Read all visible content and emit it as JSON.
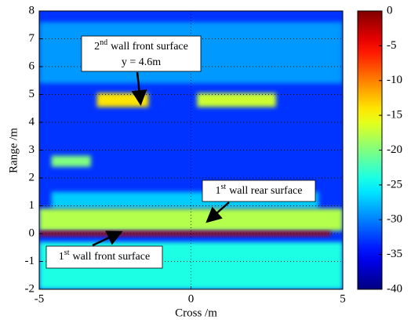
{
  "chart_data": {
    "type": "heatmap",
    "xlabel": "Cross /m",
    "ylabel": "Range /m",
    "xlim": [
      -5,
      5
    ],
    "xticks": [
      -5,
      0,
      5
    ],
    "ylim": [
      -2,
      8
    ],
    "yticks": [
      -2,
      -1,
      0,
      1,
      2,
      3,
      4,
      5,
      6,
      7,
      8
    ],
    "grid": true,
    "colormap": "jet",
    "clim": [
      -40,
      0
    ],
    "colorbar_ticks": [
      0,
      -5,
      -10,
      -15,
      -20,
      -25,
      -30,
      -35,
      -40
    ],
    "background": -33,
    "regions": [
      {
        "x": [
          -5,
          5
        ],
        "y": [
          5.4,
          7.6
        ],
        "value": -29
      },
      {
        "x": [
          -5,
          5
        ],
        "y": [
          -2,
          -0.3
        ],
        "value": -24
      },
      {
        "x": [
          -4.6,
          4.2
        ],
        "y": [
          0.9,
          1.5
        ],
        "value": -27
      },
      {
        "x": [
          -4.6,
          -3.3
        ],
        "y": [
          2.4,
          2.8
        ],
        "value": -20
      },
      {
        "x": [
          -3.1,
          -1.4
        ],
        "y": [
          4.55,
          5.05
        ],
        "value": -14
      },
      {
        "x": [
          0.2,
          2.8
        ],
        "y": [
          4.55,
          5.05
        ],
        "value": -17
      },
      {
        "x": [
          -5,
          5
        ],
        "y": [
          0.1,
          0.9
        ],
        "value": -18
      },
      {
        "x": [
          -5,
          4.6
        ],
        "y": [
          -0.08,
          0.08
        ],
        "value": -2
      }
    ],
    "annotations": [
      {
        "ordinal": "2",
        "suffix": "nd",
        "text": "wall front surface",
        "line2": "y = 4.6m"
      },
      {
        "ordinal": "1",
        "suffix": "st",
        "text": "wall rear surface"
      },
      {
        "ordinal": "1",
        "suffix": "st",
        "text": "wall front surface"
      }
    ]
  }
}
